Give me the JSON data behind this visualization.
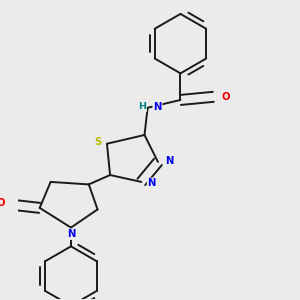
{
  "background_color": "#ebebeb",
  "bond_color": "#1a1a1a",
  "atom_colors": {
    "N": "#0000ee",
    "O": "#ee0000",
    "S": "#bbbb00",
    "H_label": "#008080",
    "C": "#1a1a1a"
  },
  "figsize": [
    3.0,
    3.0
  ],
  "dpi": 100,
  "lw": 1.4,
  "fs": 7.2
}
